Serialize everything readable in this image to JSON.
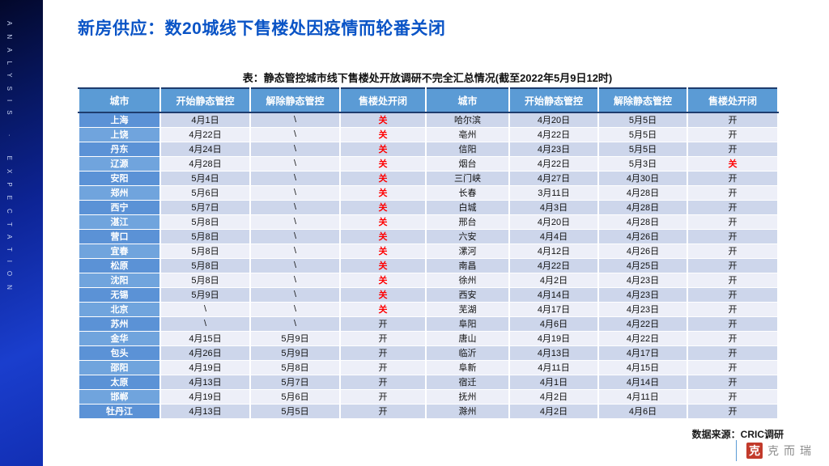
{
  "sidebar": {
    "vertical_text": "ANALYSIS · EXPECTATION"
  },
  "header": {
    "title": "新房供应：数20城线下售楼处因疫情而轮番关闭"
  },
  "table": {
    "caption": "表：静态管控城市线下售楼处开放调研不完全汇总情况(截至2022年5月9日12时)",
    "columns": [
      "城市",
      "开始静态管控",
      "解除静态管控",
      "售楼处开闭",
      "城市",
      "开始静态管控",
      "解除静态管控",
      "售楼处开闭"
    ],
    "rows": [
      [
        "上海",
        "4月1日",
        "\\",
        "关",
        "哈尔滨",
        "4月20日",
        "5月5日",
        "开"
      ],
      [
        "上饶",
        "4月22日",
        "\\",
        "关",
        "亳州",
        "4月22日",
        "5月5日",
        "开"
      ],
      [
        "丹东",
        "4月24日",
        "\\",
        "关",
        "信阳",
        "4月23日",
        "5月5日",
        "开"
      ],
      [
        "辽源",
        "4月28日",
        "\\",
        "关",
        "烟台",
        "4月22日",
        "5月3日",
        "关"
      ],
      [
        "安阳",
        "5月4日",
        "\\",
        "关",
        "三门峡",
        "4月27日",
        "4月30日",
        "开"
      ],
      [
        "郑州",
        "5月6日",
        "\\",
        "关",
        "长春",
        "3月11日",
        "4月28日",
        "开"
      ],
      [
        "西宁",
        "5月7日",
        "\\",
        "关",
        "白城",
        "4月3日",
        "4月28日",
        "开"
      ],
      [
        "湛江",
        "5月8日",
        "\\",
        "关",
        "邢台",
        "4月20日",
        "4月28日",
        "开"
      ],
      [
        "营口",
        "5月8日",
        "\\",
        "关",
        "六安",
        "4月4日",
        "4月26日",
        "开"
      ],
      [
        "宜春",
        "5月8日",
        "\\",
        "关",
        "漯河",
        "4月12日",
        "4月26日",
        "开"
      ],
      [
        "松原",
        "5月8日",
        "\\",
        "关",
        "南昌",
        "4月22日",
        "4月25日",
        "开"
      ],
      [
        "沈阳",
        "5月8日",
        "\\",
        "关",
        "徐州",
        "4月2日",
        "4月23日",
        "开"
      ],
      [
        "无锡",
        "5月9日",
        "\\",
        "关",
        "西安",
        "4月14日",
        "4月23日",
        "开"
      ],
      [
        "北京",
        "\\",
        "\\",
        "关",
        "芜湖",
        "4月17日",
        "4月23日",
        "开"
      ],
      [
        "苏州",
        "\\",
        "\\",
        "开",
        "阜阳",
        "4月6日",
        "4月22日",
        "开"
      ],
      [
        "金华",
        "4月15日",
        "5月9日",
        "开",
        "唐山",
        "4月19日",
        "4月22日",
        "开"
      ],
      [
        "包头",
        "4月26日",
        "5月9日",
        "开",
        "临沂",
        "4月13日",
        "4月17日",
        "开"
      ],
      [
        "邵阳",
        "4月19日",
        "5月8日",
        "开",
        "阜新",
        "4月11日",
        "4月15日",
        "开"
      ],
      [
        "太原",
        "4月13日",
        "5月7日",
        "开",
        "宿迁",
        "4月1日",
        "4月14日",
        "开"
      ],
      [
        "邯郸",
        "4月19日",
        "5月6日",
        "开",
        "抚州",
        "4月2日",
        "4月11日",
        "开"
      ],
      [
        "牡丹江",
        "4月13日",
        "5月5日",
        "开",
        "滁州",
        "4月2日",
        "4月6日",
        "开"
      ]
    ],
    "status_closed_value": "关",
    "status_open_value": "开"
  },
  "footer": {
    "source": "数据来源：CRIC调研",
    "logo_seal": "克",
    "logo_text": "克而瑞"
  },
  "colors": {
    "title_blue": "#0a54c6",
    "header_blue": "#5b9bd5",
    "city_blue_dark": "#5b92d6",
    "city_blue_light": "#70a4dd",
    "row_dark": "#cdd6eb",
    "row_light": "#edeff8",
    "closed_red": "#ff0000",
    "seal_red": "#c23a2b",
    "sidebar_top": "#03082b",
    "sidebar_bottom": "#122fb4"
  }
}
